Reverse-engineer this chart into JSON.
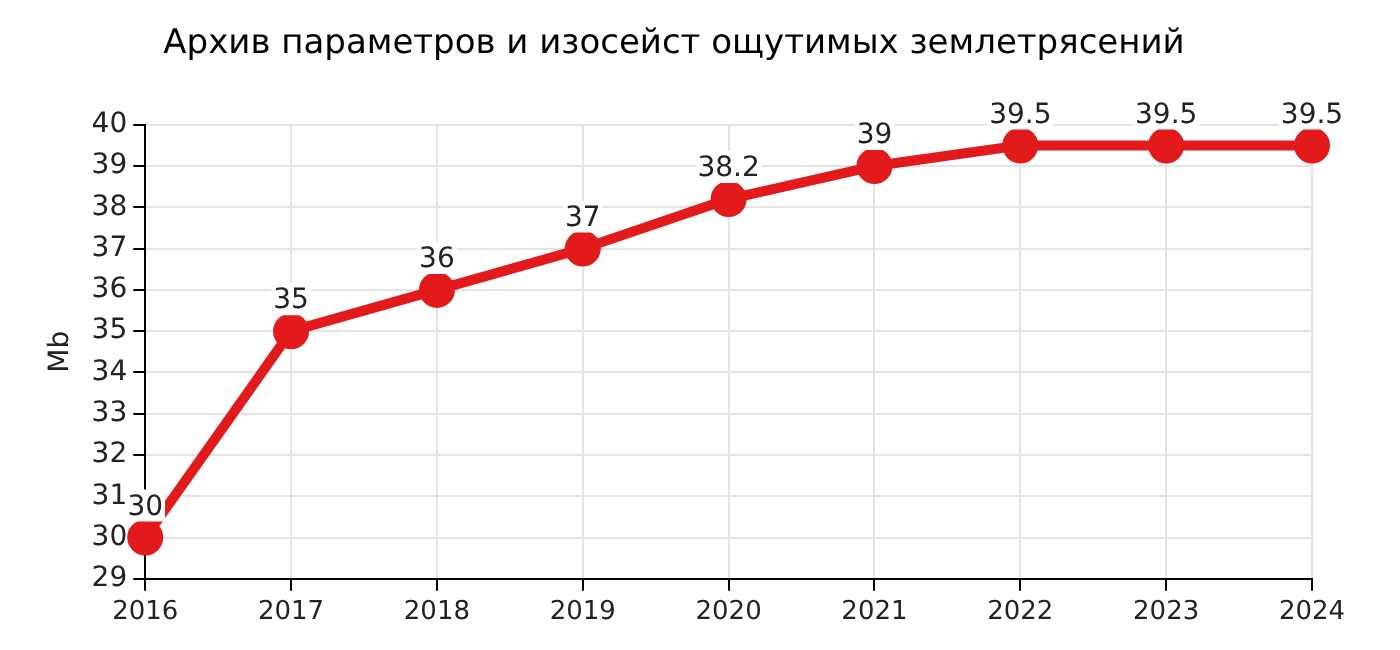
{
  "chart_data": {
    "type": "line",
    "title": "Архив параметров и изосейст ощутимых землетрясений",
    "ylabel": "Mb",
    "categories": [
      "2016",
      "2017",
      "2018",
      "2019",
      "2020",
      "2021",
      "2022",
      "2023",
      "2024"
    ],
    "series": [
      {
        "color": "#e31a1c",
        "values": [
          30,
          35,
          36,
          37,
          38.2,
          39,
          39.5,
          39.5,
          39.5
        ]
      }
    ],
    "ylim": [
      29,
      40
    ],
    "yticks": [
      29,
      30,
      31,
      32,
      33,
      34,
      35,
      36,
      37,
      38,
      39,
      40
    ],
    "grid": true,
    "legend": false,
    "marker": "circle",
    "line_style": "solid",
    "data_labels": true
  }
}
